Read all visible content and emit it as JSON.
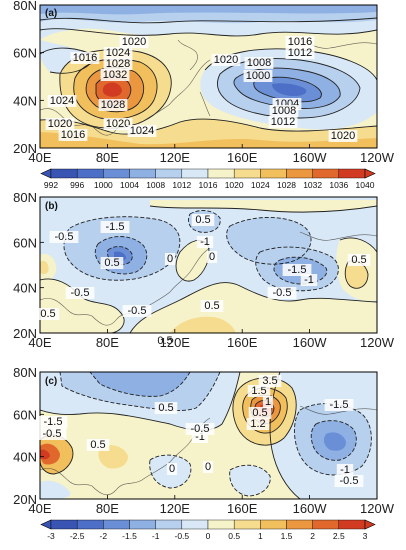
{
  "panels": [
    {
      "label": "(a)",
      "contour_labels": [
        "1020",
        "1024",
        "1028",
        "1032",
        "1024",
        "1028",
        "1020",
        "1016",
        "1016",
        "1020",
        "1024",
        "1020",
        "1016",
        "1012",
        "1008",
        "1000",
        "1004",
        "1008",
        "1012",
        "1020"
      ]
    },
    {
      "label": "(b)",
      "contour_labels": [
        "-0.5",
        "-1.5",
        "0.5",
        "0",
        "-1",
        "0.5",
        "-0.5",
        "0.5",
        "-0.5",
        "-1.5",
        "-1",
        "0.5",
        "-0.5",
        "0.5",
        "0.5",
        "0"
      ]
    },
    {
      "label": "(c)",
      "contour_labels": [
        "-1.5",
        "-0.5",
        "0.5",
        "-1",
        "0",
        "-0.5",
        "0",
        "1.5",
        "1",
        "0.5",
        "1.2",
        "-1.5",
        "-1",
        "-0.5",
        "0.5",
        "3.5"
      ]
    }
  ],
  "axes": {
    "x_ticks": [
      "40E",
      "80E",
      "120E",
      "160E",
      "160W",
      "120W"
    ],
    "y_ticks": [
      "80N",
      "60N",
      "40N",
      "20N"
    ]
  },
  "colorbars": [
    {
      "ticks": [
        "992",
        "996",
        "1000",
        "1004",
        "1008",
        "1012",
        "1016",
        "1020",
        "1024",
        "1028",
        "1032",
        "1036",
        "1040"
      ],
      "colors": [
        "#3a54b3",
        "#4d6fc7",
        "#6a8fd6",
        "#8fb0e3",
        "#b6d0ee",
        "#d8e8f6",
        "#f6f2c9",
        "#f5dc8e",
        "#f2bf5d",
        "#eb9740",
        "#e1682d",
        "#d13b22"
      ]
    },
    {
      "ticks": [
        "-3",
        "-2.5",
        "-2",
        "-1.5",
        "-1",
        "-0.5",
        "0",
        "0.5",
        "1",
        "1.5",
        "2",
        "2.5",
        "3"
      ],
      "colors": [
        "#3a54b3",
        "#4d6fc7",
        "#6a8fd6",
        "#8fb0e3",
        "#b6d0ee",
        "#d8e8f6",
        "#f6f2c9",
        "#f5dc8e",
        "#f2bf5d",
        "#eb9740",
        "#e1682d",
        "#d13b22"
      ]
    }
  ]
}
